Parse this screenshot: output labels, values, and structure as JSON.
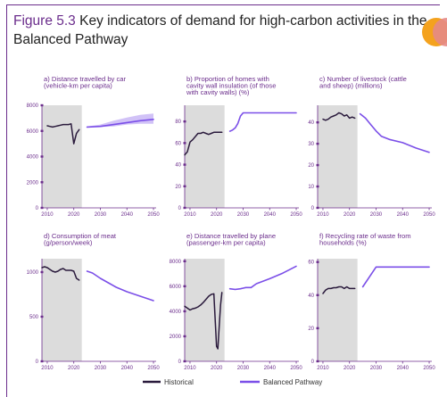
{
  "figure": {
    "number": "Figure 5.3",
    "title": "Key indicators of demand for high-carbon activities in the Balanced Pathway"
  },
  "colors": {
    "historical": "#2a1a3c",
    "balanced": "#7b4fe8",
    "band": "#dcdcdc",
    "axis": "#6b2d8c"
  },
  "legend": [
    {
      "label": "Historical",
      "key": "historical"
    },
    {
      "label": "Balanced Pathway",
      "key": "balanced"
    }
  ],
  "chart_data": [
    {
      "type": "line",
      "title_lines": [
        "a) Distance travelled by car",
        "(vehicle-km per capita)"
      ],
      "xlim": [
        2008,
        2051
      ],
      "ylim": [
        0,
        8000
      ],
      "xticks": [
        2010,
        2020,
        2030,
        2040,
        2050
      ],
      "yticks": [
        0,
        2000,
        4000,
        6000,
        8000
      ],
      "ytick_labels": [
        "0",
        "2000",
        "4000",
        "6000",
        "8000"
      ],
      "historical_end": 2023,
      "range_band": {
        "x": [
          2025,
          2030,
          2035,
          2040,
          2045,
          2050
        ],
        "low": [
          6300,
          6300,
          6350,
          6500,
          6550,
          6550
        ],
        "high": [
          6350,
          6500,
          6800,
          7050,
          7250,
          7350
        ]
      },
      "series": [
        {
          "name": "Historical",
          "key": "historical",
          "x": [
            2010,
            2011,
            2012,
            2013,
            2014,
            2015,
            2016,
            2017,
            2018,
            2019,
            2020,
            2021,
            2022
          ],
          "y": [
            6400,
            6350,
            6300,
            6350,
            6400,
            6450,
            6500,
            6500,
            6500,
            6550,
            5000,
            5800,
            6100
          ]
        },
        {
          "name": "Balanced Pathway",
          "key": "balanced",
          "x": [
            2025,
            2030,
            2035,
            2040,
            2045,
            2050
          ],
          "y": [
            6300,
            6350,
            6500,
            6650,
            6800,
            6900
          ]
        }
      ]
    },
    {
      "type": "line",
      "title_lines": [
        "b) Proportion of homes with",
        "cavity wall insulation (of those",
        "with cavity walls) (%)"
      ],
      "xlim": [
        2008,
        2051
      ],
      "ylim": [
        0,
        95
      ],
      "xticks": [
        2010,
        2020,
        2030,
        2040,
        2050
      ],
      "yticks": [
        0,
        20,
        40,
        60,
        80
      ],
      "ytick_labels": [
        "0",
        "20",
        "40",
        "60",
        "80"
      ],
      "historical_end": 2023,
      "series": [
        {
          "name": "Historical",
          "key": "historical",
          "x": [
            2008,
            2009,
            2010,
            2011,
            2012,
            2013,
            2014,
            2015,
            2016,
            2017,
            2018,
            2019,
            2020,
            2021,
            2022
          ],
          "y": [
            49,
            52,
            61,
            63,
            66,
            69,
            69,
            70,
            69,
            68,
            69,
            70,
            70,
            70,
            70
          ]
        },
        {
          "name": "Balanced Pathway",
          "key": "balanced",
          "x": [
            2025,
            2026,
            2027,
            2028,
            2029,
            2030,
            2035,
            2040,
            2045,
            2050
          ],
          "y": [
            71,
            72,
            74,
            78,
            85,
            88,
            88,
            88,
            88,
            88
          ]
        }
      ]
    },
    {
      "type": "line",
      "title_lines": [
        "c) Number of livestock (cattle",
        "and sheep) (millions)"
      ],
      "xlim": [
        2008,
        2051
      ],
      "ylim": [
        0,
        48
      ],
      "xticks": [
        2010,
        2020,
        2030,
        2040,
        2050
      ],
      "yticks": [
        0,
        10,
        20,
        30,
        40
      ],
      "ytick_labels": [
        "0",
        "10",
        "20",
        "30",
        "40"
      ],
      "historical_end": 2023,
      "series": [
        {
          "name": "Historical",
          "key": "historical",
          "x": [
            2010,
            2011,
            2012,
            2013,
            2014,
            2015,
            2016,
            2017,
            2018,
            2019,
            2020,
            2021,
            2022
          ],
          "y": [
            41.5,
            41,
            41.5,
            42.5,
            43,
            43.5,
            44.5,
            44,
            43,
            43.5,
            42,
            42.5,
            42
          ]
        },
        {
          "name": "Balanced Pathway",
          "key": "balanced",
          "x": [
            2024,
            2026,
            2028,
            2030,
            2032,
            2035,
            2040,
            2045,
            2050
          ],
          "y": [
            44,
            42,
            39,
            36,
            33.5,
            32,
            30.5,
            28,
            26
          ]
        }
      ]
    },
    {
      "type": "line",
      "title_lines": [
        "d) Consumption of meat",
        "(g/person/week)"
      ],
      "xlim": [
        2008,
        2051
      ],
      "ylim": [
        0,
        1150
      ],
      "xticks": [
        2010,
        2020,
        2030,
        2040,
        2050
      ],
      "yticks": [
        0,
        500,
        1000
      ],
      "ytick_labels": [
        "0",
        "500",
        "1000"
      ],
      "historical_end": 2023,
      "series": [
        {
          "name": "Historical",
          "key": "historical",
          "x": [
            2008,
            2009,
            2010,
            2011,
            2012,
            2013,
            2014,
            2015,
            2016,
            2017,
            2018,
            2019,
            2020,
            2021,
            2022
          ],
          "y": [
            1050,
            1060,
            1050,
            1030,
            1010,
            1000,
            1010,
            1030,
            1040,
            1020,
            1020,
            1020,
            1010,
            930,
            910
          ]
        },
        {
          "name": "Balanced Pathway",
          "key": "balanced",
          "x": [
            2025,
            2027,
            2030,
            2033,
            2036,
            2040,
            2045,
            2050
          ],
          "y": [
            1010,
            990,
            930,
            880,
            830,
            780,
            730,
            680
          ]
        }
      ]
    },
    {
      "type": "line",
      "title_lines": [
        "e) Distance travelled by plane",
        "(passenger-km per capita)"
      ],
      "xlim": [
        2008,
        2051
      ],
      "ylim": [
        0,
        8200
      ],
      "xticks": [
        2010,
        2020,
        2030,
        2040,
        2050
      ],
      "yticks": [
        0,
        2000,
        4000,
        6000,
        8000
      ],
      "ytick_labels": [
        "0",
        "2000",
        "4000",
        "6000",
        "8000"
      ],
      "historical_end": 2023,
      "series": [
        {
          "name": "Historical",
          "key": "historical",
          "x": [
            2008,
            2009,
            2010,
            2011,
            2012,
            2013,
            2014,
            2015,
            2016,
            2017,
            2018,
            2019,
            2020,
            2020.5,
            2021,
            2021.5,
            2022
          ],
          "y": [
            4400,
            4250,
            4100,
            4200,
            4250,
            4350,
            4500,
            4700,
            4950,
            5200,
            5350,
            5400,
            1200,
            1000,
            2800,
            4500,
            5500
          ]
        },
        {
          "name": "Balanced Pathway",
          "key": "balanced",
          "x": [
            2025,
            2027,
            2029,
            2030,
            2031,
            2033,
            2035,
            2040,
            2045,
            2050
          ],
          "y": [
            5800,
            5750,
            5800,
            5850,
            5900,
            5900,
            6200,
            6600,
            7050,
            7600
          ]
        }
      ]
    },
    {
      "type": "line",
      "title_lines": [
        "f) Recycling rate of waste from",
        "households (%)"
      ],
      "xlim": [
        2008,
        2051
      ],
      "ylim": [
        0,
        62
      ],
      "xticks": [
        2010,
        2020,
        2030,
        2040,
        2050
      ],
      "yticks": [
        0,
        20,
        40,
        60
      ],
      "ytick_labels": [
        "0",
        "20",
        "40",
        "60"
      ],
      "historical_end": 2023,
      "series": [
        {
          "name": "Historical",
          "key": "historical",
          "x": [
            2010,
            2011,
            2012,
            2013,
            2014,
            2015,
            2016,
            2017,
            2018,
            2019,
            2020,
            2021,
            2022
          ],
          "y": [
            41,
            43,
            44,
            44,
            44.5,
            44.5,
            45,
            45,
            44,
            45,
            44,
            44,
            44
          ]
        },
        {
          "name": "Balanced Pathway",
          "key": "balanced",
          "x": [
            2025,
            2030,
            2035,
            2040,
            2045,
            2050
          ],
          "y": [
            45,
            57,
            57,
            57,
            57,
            57
          ]
        }
      ]
    }
  ]
}
